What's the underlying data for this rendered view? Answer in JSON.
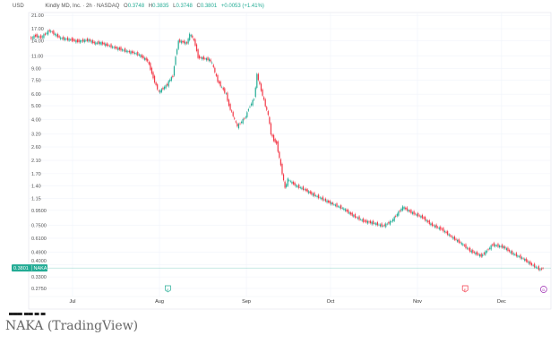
{
  "header": {
    "currency": "USD",
    "symbol_desc": "Kindly MD, Inc. · 2h · NASDAQ",
    "open_label": "O",
    "open": "0.3748",
    "high_label": "H",
    "high": "0.3835",
    "low_label": "L",
    "low": "0.3748",
    "close_label": "C",
    "close": "0.3801",
    "change": "+0.0053 (+1.41%)"
  },
  "price_tag": {
    "value": "0.3801",
    "ticker": "NAKA"
  },
  "caption": "NAKA (TradingView)",
  "logo_text": "TV",
  "colors": {
    "up": "#22ab94",
    "down": "#f23645",
    "grid": "#f0f3fa",
    "last_price_line": "#22ab94",
    "earnings_marker_green": "#22ab94",
    "earnings_marker_red": "#f23645",
    "dividend_marker": "#9c27b0"
  },
  "chart_data": {
    "type": "candlestick",
    "yscale": "log",
    "ylim": [
      0.26,
      22
    ],
    "y_ticks": [
      "21.00",
      "17.00",
      "14.00",
      "11.00",
      "9.00",
      "7.50",
      "6.00",
      "5.00",
      "4.00",
      "3.20",
      "2.60",
      "2.10",
      "1.70",
      "1.40",
      "1.15",
      "0.9500",
      "0.7500",
      "0.6100",
      "0.4900",
      "0.4000",
      "0.3300",
      "0.2750"
    ],
    "x_ticks": [
      {
        "label": "Jul",
        "date": "07-01"
      },
      {
        "label": "Aug",
        "date": "08-01"
      },
      {
        "label": "Sep",
        "date": "09-01"
      },
      {
        "label": "Oct",
        "date": "10-01"
      },
      {
        "label": "Nov",
        "date": "11-01"
      },
      {
        "label": "Dec",
        "date": "12-01"
      }
    ],
    "grid": true,
    "closes": [
      [
        "06-16",
        14.5
      ],
      [
        "06-18",
        15.2
      ],
      [
        "06-20",
        14.8
      ],
      [
        "06-23",
        16.5
      ],
      [
        "06-25",
        15.5
      ],
      [
        "06-27",
        14.6
      ],
      [
        "07-01",
        14.2
      ],
      [
        "07-03",
        13.9
      ],
      [
        "07-07",
        14.2
      ],
      [
        "07-09",
        13.5
      ],
      [
        "07-11",
        13.6
      ],
      [
        "07-14",
        13.0
      ],
      [
        "07-16",
        12.6
      ],
      [
        "07-18",
        12.3
      ],
      [
        "07-21",
        11.8
      ],
      [
        "07-23",
        11.6
      ],
      [
        "07-25",
        11.2
      ],
      [
        "07-28",
        10.2
      ],
      [
        "07-29",
        9.0
      ],
      [
        "07-30",
        7.8
      ],
      [
        "07-31",
        6.9
      ],
      [
        "08-01",
        6.2
      ],
      [
        "08-04",
        7.0
      ],
      [
        "08-05",
        7.6
      ],
      [
        "08-06",
        8.0
      ],
      [
        "08-07",
        11.0
      ],
      [
        "08-08",
        14.0
      ],
      [
        "08-11",
        13.5
      ],
      [
        "08-12",
        15.5
      ],
      [
        "08-13",
        14.8
      ],
      [
        "08-14",
        13.2
      ],
      [
        "08-15",
        10.8
      ],
      [
        "08-18",
        10.5
      ],
      [
        "08-19",
        10.4
      ],
      [
        "08-20",
        9.8
      ],
      [
        "08-21",
        8.5
      ],
      [
        "08-22",
        7.4
      ],
      [
        "08-25",
        6.0
      ],
      [
        "08-26",
        5.0
      ],
      [
        "08-27",
        4.5
      ],
      [
        "08-28",
        4.0
      ],
      [
        "08-29",
        3.6
      ],
      [
        "09-01",
        4.2
      ],
      [
        "09-02",
        4.8
      ],
      [
        "09-04",
        5.6
      ],
      [
        "09-05",
        8.2
      ],
      [
        "09-08",
        5.0
      ],
      [
        "09-09",
        4.3
      ],
      [
        "09-10",
        3.2
      ],
      [
        "09-11",
        2.9
      ],
      [
        "09-12",
        2.75
      ],
      [
        "09-15",
        1.35
      ],
      [
        "09-16",
        1.55
      ],
      [
        "09-17",
        1.5
      ],
      [
        "09-19",
        1.4
      ],
      [
        "09-22",
        1.32
      ],
      [
        "09-25",
        1.22
      ],
      [
        "09-29",
        1.12
      ],
      [
        "10-02",
        1.05
      ],
      [
        "10-06",
        0.97
      ],
      [
        "10-09",
        0.88
      ],
      [
        "10-13",
        0.8
      ],
      [
        "10-16",
        0.78
      ],
      [
        "10-20",
        0.74
      ],
      [
        "10-23",
        0.8
      ],
      [
        "10-27",
        1.0
      ],
      [
        "10-30",
        0.92
      ],
      [
        "11-03",
        0.85
      ],
      [
        "11-06",
        0.76
      ],
      [
        "11-10",
        0.7
      ],
      [
        "11-13",
        0.63
      ],
      [
        "11-17",
        0.56
      ],
      [
        "11-20",
        0.5
      ],
      [
        "11-24",
        0.46
      ],
      [
        "11-26",
        0.5
      ],
      [
        "11-28",
        0.55
      ],
      [
        "12-02",
        0.53
      ],
      [
        "12-05",
        0.48
      ],
      [
        "12-09",
        0.44
      ],
      [
        "12-12",
        0.4
      ],
      [
        "12-15",
        0.37
      ],
      [
        "12-16",
        0.38
      ]
    ],
    "last_price": 0.3801,
    "events": [
      {
        "type": "earnings",
        "date": "08-04",
        "symbol": "E",
        "color": "green"
      },
      {
        "type": "earnings",
        "date": "11-18",
        "symbol": "E",
        "color": "red"
      },
      {
        "type": "dividend",
        "date": "12-16",
        "symbol": "D",
        "color": "purple"
      }
    ]
  }
}
